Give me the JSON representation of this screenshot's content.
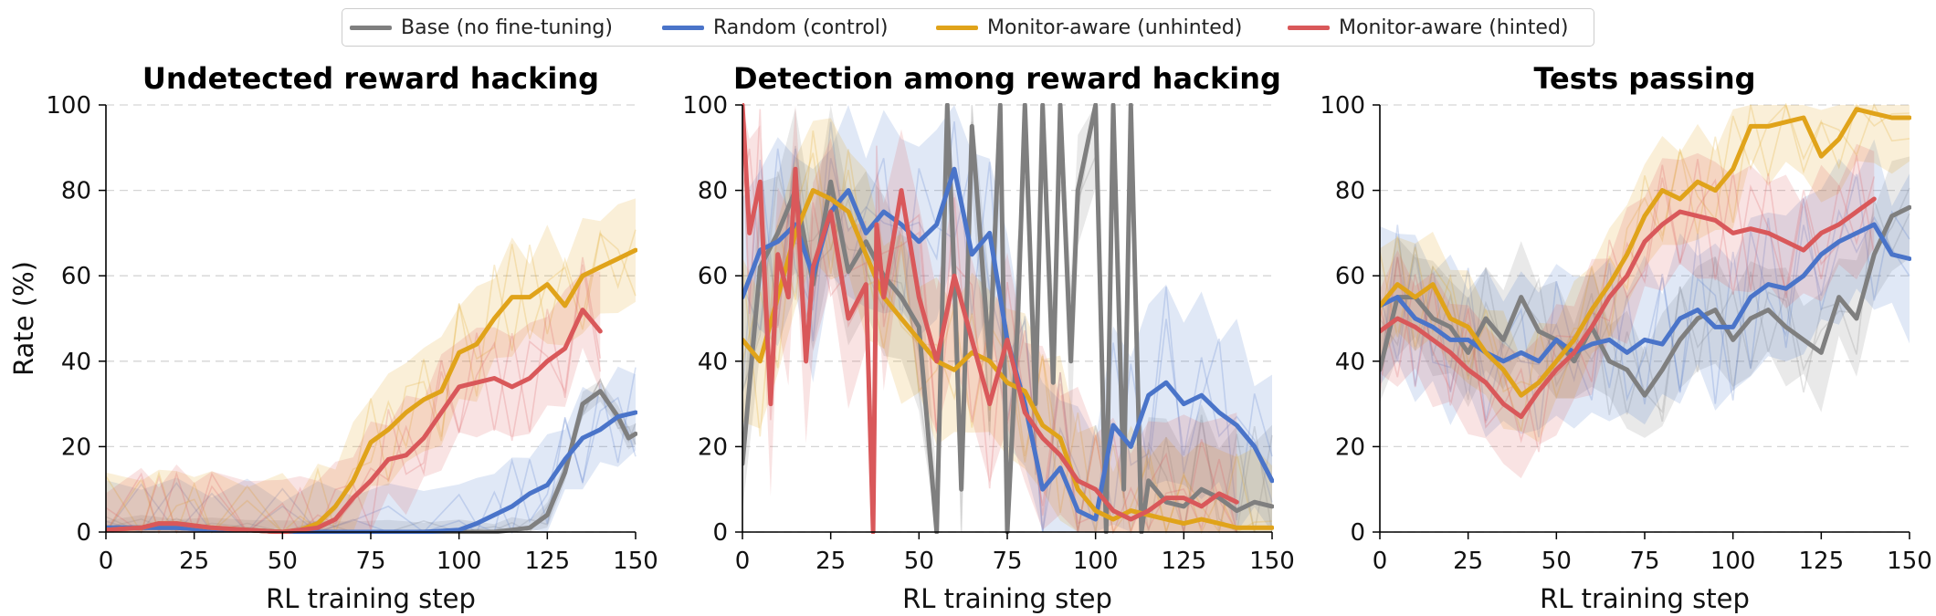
{
  "legend": {
    "items": [
      {
        "label": "Base (no fine-tuning)",
        "color": "#7f7f7f"
      },
      {
        "label": "Random (control)",
        "color": "#4a74c9"
      },
      {
        "label": "Monitor-aware (unhinted)",
        "color": "#e0a31a"
      },
      {
        "label": "Monitor-aware (hinted)",
        "color": "#d9585a"
      }
    ]
  },
  "chart_data": [
    {
      "type": "line",
      "title": "Undetected reward hacking",
      "xlabel": "RL training step",
      "ylabel": "Rate (%)",
      "xlim": [
        0,
        150
      ],
      "ylim": [
        0,
        100
      ],
      "xticks": [
        "0",
        "25",
        "50",
        "75",
        "100",
        "125",
        "150"
      ],
      "yticks": [
        "0",
        "20",
        "40",
        "60",
        "80",
        "100"
      ],
      "grid": "horizontal dashed",
      "series": [
        {
          "name": "Base (no fine-tuning)",
          "color": "#7f7f7f",
          "x": [
            0,
            10,
            20,
            30,
            40,
            50,
            60,
            70,
            80,
            90,
            100,
            110,
            115,
            120,
            125,
            130,
            135,
            140,
            145,
            148,
            150
          ],
          "y": [
            1,
            1,
            1,
            0.5,
            0.5,
            0,
            0,
            0,
            0,
            0,
            0,
            0,
            0.5,
            1,
            4,
            14,
            30,
            33,
            27,
            22,
            23
          ],
          "band": [
            0,
            3
          ]
        },
        {
          "name": "Random (control)",
          "color": "#4a74c9",
          "x": [
            0,
            10,
            20,
            30,
            40,
            50,
            60,
            70,
            80,
            90,
            100,
            105,
            110,
            115,
            120,
            125,
            130,
            135,
            140,
            145,
            150
          ],
          "y": [
            1,
            1,
            1,
            0.5,
            0.5,
            0,
            0,
            0,
            0,
            0,
            0.5,
            2,
            4,
            6,
            9,
            11,
            17,
            22,
            24,
            27,
            28
          ],
          "band": [
            0,
            12
          ]
        },
        {
          "name": "Monitor-aware (unhinted)",
          "color": "#e0a31a",
          "x": [
            0,
            10,
            15,
            20,
            25,
            30,
            40,
            50,
            55,
            60,
            65,
            70,
            75,
            80,
            85,
            90,
            95,
            100,
            105,
            110,
            115,
            120,
            125,
            130,
            135,
            140,
            145,
            150
          ],
          "y": [
            0.5,
            1,
            2,
            2,
            1.5,
            1,
            0.5,
            0,
            0.5,
            2,
            6,
            12,
            21,
            24,
            28,
            31,
            33,
            42,
            44,
            50,
            55,
            55,
            58,
            53,
            60,
            62,
            64,
            66
          ],
          "band": [
            0,
            14
          ]
        },
        {
          "name": "Monitor-aware (hinted)",
          "color": "#d9585a",
          "x": [
            0,
            10,
            15,
            20,
            25,
            30,
            40,
            50,
            55,
            60,
            65,
            70,
            75,
            80,
            85,
            90,
            95,
            100,
            105,
            110,
            115,
            120,
            125,
            130,
            135,
            140
          ],
          "y": [
            0.5,
            1,
            2,
            2,
            1.5,
            1,
            0.5,
            0,
            0.5,
            1,
            3,
            8,
            12,
            17,
            18,
            22,
            28,
            34,
            35,
            36,
            34,
            36,
            40,
            43,
            52,
            47
          ],
          "band": [
            0,
            14
          ]
        }
      ]
    },
    {
      "type": "line",
      "title": "Detection among reward hacking",
      "xlabel": "RL training step",
      "ylabel": "",
      "xlim": [
        0,
        150
      ],
      "ylim": [
        0,
        100
      ],
      "xticks": [
        "0",
        "25",
        "50",
        "75",
        "100",
        "125",
        "150"
      ],
      "yticks": [
        "0",
        "20",
        "40",
        "60",
        "80",
        "100"
      ],
      "grid": "horizontal dashed",
      "series": [
        {
          "name": "Base (no fine-tuning)",
          "color": "#7f7f7f",
          "x": [
            0,
            5,
            10,
            15,
            20,
            25,
            30,
            35,
            40,
            45,
            50,
            55,
            58,
            60,
            62,
            65,
            70,
            73,
            75,
            78,
            80,
            83,
            85,
            88,
            90,
            93,
            95,
            100,
            103,
            105,
            108,
            110,
            113,
            115,
            120,
            125,
            130,
            135,
            140,
            145,
            150
          ],
          "y": [
            16,
            62,
            70,
            80,
            58,
            82,
            61,
            68,
            60,
            55,
            48,
            0,
            100,
            60,
            10,
            95,
            40,
            100,
            0,
            50,
            100,
            30,
            100,
            35,
            100,
            40,
            80,
            100,
            0,
            100,
            10,
            100,
            0,
            12,
            7,
            6,
            10,
            8,
            5,
            7,
            6
          ],
          "band": [
            0,
            20
          ]
        },
        {
          "name": "Random (control)",
          "color": "#4a74c9",
          "x": [
            0,
            5,
            10,
            15,
            20,
            25,
            30,
            35,
            40,
            45,
            50,
            55,
            60,
            65,
            70,
            75,
            80,
            85,
            90,
            95,
            100,
            105,
            110,
            115,
            120,
            125,
            130,
            135,
            140,
            145,
            150
          ],
          "y": [
            55,
            66,
            68,
            72,
            60,
            75,
            80,
            70,
            75,
            72,
            68,
            72,
            85,
            65,
            70,
            45,
            30,
            10,
            15,
            5,
            3,
            25,
            20,
            32,
            35,
            30,
            32,
            28,
            25,
            20,
            12
          ],
          "band": [
            0,
            25
          ]
        },
        {
          "name": "Monitor-aware (unhinted)",
          "color": "#e0a31a",
          "x": [
            0,
            5,
            10,
            15,
            20,
            25,
            30,
            35,
            40,
            45,
            50,
            55,
            60,
            65,
            70,
            75,
            80,
            85,
            90,
            95,
            100,
            105,
            110,
            115,
            120,
            125,
            130,
            135,
            140,
            145,
            150
          ],
          "y": [
            45,
            40,
            55,
            70,
            80,
            78,
            75,
            65,
            55,
            50,
            45,
            40,
            38,
            42,
            40,
            35,
            33,
            25,
            22,
            10,
            5,
            3,
            5,
            4,
            3,
            2,
            3,
            2,
            1,
            1,
            1
          ],
          "band": [
            0,
            20
          ]
        },
        {
          "name": "Monitor-aware (hinted)",
          "color": "#d9585a",
          "x": [
            0,
            2,
            5,
            8,
            10,
            13,
            15,
            18,
            20,
            25,
            30,
            35,
            37,
            38,
            40,
            45,
            50,
            55,
            60,
            65,
            70,
            75,
            80,
            85,
            90,
            95,
            100,
            105,
            110,
            115,
            120,
            125,
            130,
            135,
            140
          ],
          "y": [
            100,
            70,
            82,
            30,
            65,
            55,
            85,
            40,
            62,
            75,
            50,
            58,
            0,
            72,
            55,
            80,
            55,
            40,
            60,
            45,
            30,
            45,
            28,
            22,
            18,
            12,
            10,
            5,
            3,
            5,
            8,
            8,
            6,
            9,
            7
          ],
          "band": [
            0,
            22
          ]
        }
      ]
    },
    {
      "type": "line",
      "title": "Tests passing",
      "xlabel": "RL training step",
      "ylabel": "",
      "xlim": [
        0,
        150
      ],
      "ylim": [
        0,
        100
      ],
      "xticks": [
        "0",
        "25",
        "50",
        "75",
        "100",
        "125",
        "150"
      ],
      "yticks": [
        "0",
        "20",
        "40",
        "60",
        "80",
        "100"
      ],
      "grid": "horizontal dashed",
      "series": [
        {
          "name": "Base (no fine-tuning)",
          "color": "#7f7f7f",
          "x": [
            0,
            5,
            10,
            15,
            20,
            25,
            30,
            35,
            40,
            45,
            50,
            55,
            60,
            65,
            70,
            75,
            80,
            85,
            90,
            95,
            100,
            105,
            110,
            115,
            120,
            125,
            130,
            135,
            140,
            145,
            150
          ],
          "y": [
            38,
            55,
            55,
            50,
            48,
            42,
            50,
            45,
            55,
            47,
            45,
            40,
            48,
            40,
            38,
            32,
            38,
            45,
            50,
            52,
            45,
            50,
            52,
            48,
            45,
            42,
            55,
            50,
            65,
            74,
            76
          ],
          "band": [
            0,
            14
          ]
        },
        {
          "name": "Random (control)",
          "color": "#4a74c9",
          "x": [
            0,
            5,
            10,
            15,
            20,
            25,
            30,
            35,
            40,
            45,
            50,
            55,
            60,
            65,
            70,
            75,
            80,
            85,
            90,
            95,
            100,
            105,
            110,
            115,
            120,
            125,
            130,
            135,
            140,
            145,
            150
          ],
          "y": [
            53,
            55,
            50,
            48,
            45,
            45,
            42,
            40,
            42,
            40,
            45,
            42,
            44,
            45,
            42,
            45,
            44,
            50,
            52,
            48,
            48,
            55,
            58,
            57,
            60,
            65,
            68,
            70,
            72,
            65,
            64
          ],
          "band": [
            0,
            20
          ]
        },
        {
          "name": "Monitor-aware (unhinted)",
          "color": "#e0a31a",
          "x": [
            0,
            5,
            10,
            15,
            20,
            25,
            30,
            35,
            40,
            45,
            50,
            55,
            60,
            65,
            70,
            75,
            80,
            85,
            90,
            95,
            100,
            105,
            110,
            115,
            120,
            125,
            130,
            135,
            140,
            145,
            150
          ],
          "y": [
            53,
            58,
            55,
            58,
            50,
            48,
            42,
            38,
            32,
            35,
            40,
            45,
            52,
            58,
            65,
            74,
            80,
            78,
            82,
            80,
            85,
            95,
            95,
            96,
            97,
            88,
            92,
            99,
            98,
            97,
            97
          ],
          "band": [
            0,
            14
          ]
        },
        {
          "name": "Monitor-aware (hinted)",
          "color": "#d9585a",
          "x": [
            0,
            5,
            10,
            15,
            20,
            25,
            30,
            35,
            40,
            45,
            50,
            55,
            60,
            65,
            70,
            75,
            80,
            85,
            90,
            95,
            100,
            105,
            110,
            115,
            120,
            125,
            130,
            135,
            140
          ],
          "y": [
            47,
            50,
            48,
            45,
            42,
            38,
            35,
            30,
            27,
            33,
            38,
            42,
            48,
            55,
            60,
            68,
            72,
            75,
            74,
            73,
            70,
            71,
            70,
            68,
            66,
            70,
            72,
            75,
            78
          ],
          "band": [
            0,
            16
          ]
        }
      ]
    }
  ]
}
